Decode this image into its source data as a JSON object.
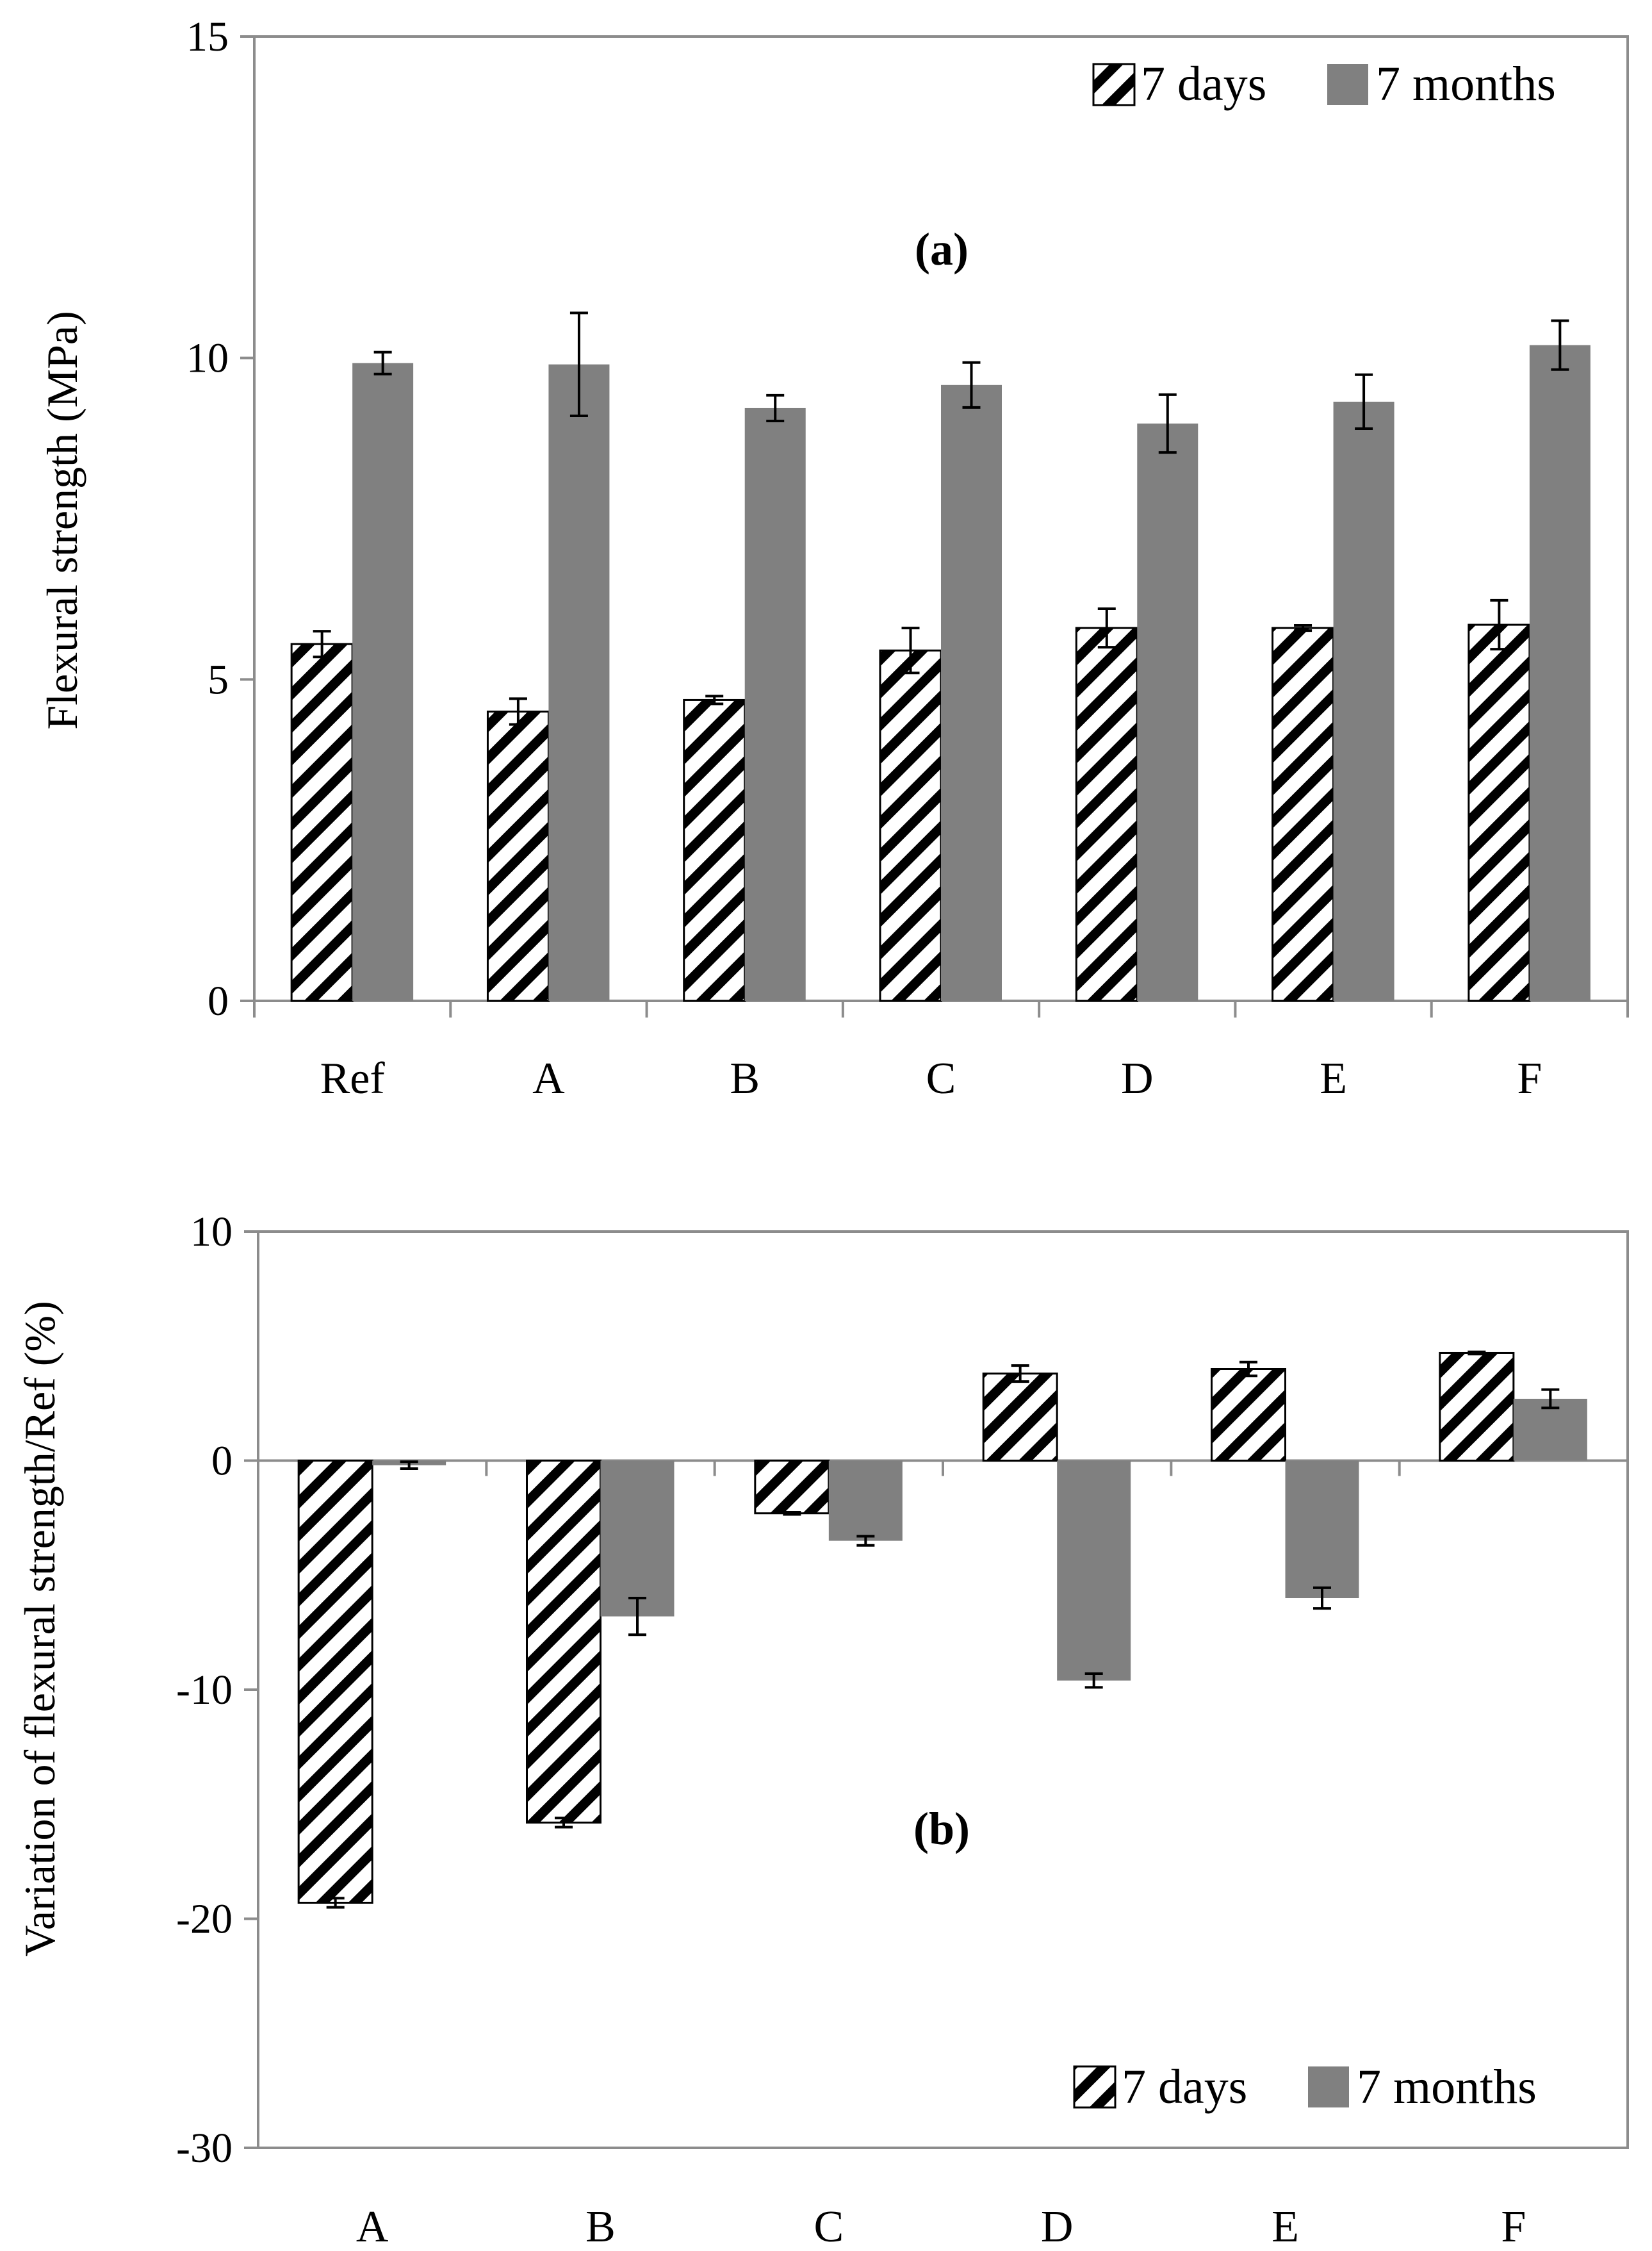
{
  "chart_data": [
    {
      "type": "bar",
      "panel_label": "(a)",
      "title": "",
      "xlabel": "",
      "ylabel": "Flexural strength (MPa)",
      "ylim": [
        0,
        15
      ],
      "yticks": [
        0,
        5,
        10,
        15
      ],
      "ytick_labels": [
        "0",
        "5",
        "10",
        "15"
      ],
      "grid": false,
      "legend_position": "top-right",
      "categories": [
        "Ref",
        "A",
        "B",
        "C",
        "D",
        "E",
        "F"
      ],
      "series": [
        {
          "name": "7 days",
          "pattern": "hatched",
          "values": [
            5.55,
            4.5,
            4.68,
            5.45,
            5.8,
            5.8,
            5.85
          ],
          "errors": [
            0.2,
            0.2,
            0.06,
            0.35,
            0.3,
            0.04,
            0.38
          ]
        },
        {
          "name": "7 months",
          "pattern": "solid",
          "color": "#808080",
          "values": [
            9.92,
            9.9,
            9.22,
            9.58,
            8.98,
            9.32,
            10.2
          ],
          "errors": [
            0.17,
            0.8,
            0.2,
            0.35,
            0.45,
            0.42,
            0.38
          ]
        }
      ]
    },
    {
      "type": "bar",
      "panel_label": "(b)",
      "title": "",
      "xlabel": "",
      "ylabel": "Variation of flexural strength/Ref (%)",
      "ylim": [
        -30,
        10
      ],
      "yticks": [
        -30,
        -20,
        -10,
        0,
        10
      ],
      "ytick_labels": [
        "-30",
        "-20",
        "-10",
        "0",
        "10"
      ],
      "grid": false,
      "legend_position": "bottom-right",
      "categories": [
        "A",
        "B",
        "C",
        "D",
        "E",
        "F"
      ],
      "series": [
        {
          "name": "7 days",
          "pattern": "hatched",
          "values": [
            -19.3,
            -15.8,
            -2.3,
            3.8,
            4.0,
            4.7
          ],
          "errors": [
            0.2,
            0.2,
            0.05,
            0.35,
            0.3,
            0.05
          ]
        },
        {
          "name": "7 months",
          "pattern": "solid",
          "color": "#808080",
          "values": [
            -0.2,
            -6.8,
            -3.5,
            -9.6,
            -6.0,
            2.7
          ],
          "errors": [
            0.15,
            0.8,
            0.2,
            0.3,
            0.45,
            0.4
          ]
        }
      ]
    }
  ],
  "colors": {
    "solid_bar": "#808080",
    "axis": "#8c8c8c",
    "hatch": "#000000"
  }
}
